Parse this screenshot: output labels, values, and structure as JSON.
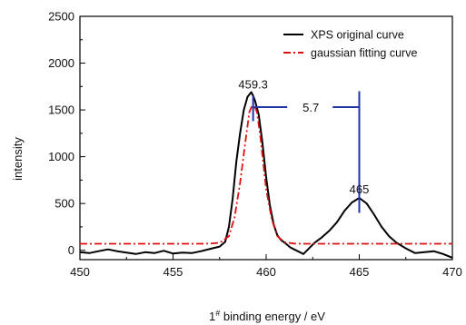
{
  "chart_data": {
    "type": "line",
    "title": "",
    "xlabel_prefix": "1",
    "xlabel_sup": "#",
    "xlabel_rest": " binding energy / eV",
    "ylabel": "intensity",
    "xlim": [
      450,
      470
    ],
    "ylim": [
      -100,
      2500
    ],
    "xticks": [
      450,
      455,
      460,
      465,
      470
    ],
    "yticks": [
      0,
      500,
      1000,
      1500,
      2000,
      2500
    ],
    "grid": false,
    "legend_position": "top-right",
    "series": [
      {
        "name": "XPS original curve",
        "color": "#000000",
        "style": "solid",
        "x": [
          450.0,
          450.5,
          451.0,
          451.5,
          452.0,
          452.5,
          453.0,
          453.5,
          454.0,
          454.5,
          455.0,
          455.5,
          456.0,
          456.5,
          457.0,
          457.5,
          457.8,
          458.0,
          458.2,
          458.4,
          458.6,
          458.8,
          459.0,
          459.2,
          459.3,
          459.4,
          459.6,
          459.8,
          460.0,
          460.2,
          460.4,
          460.6,
          460.8,
          461.0,
          461.3,
          461.6,
          462.0,
          462.3,
          462.6,
          463.0,
          463.4,
          463.8,
          464.2,
          464.6,
          465.0,
          465.4,
          465.8,
          466.2,
          466.6,
          467.0,
          467.5,
          468.0,
          468.5,
          469.0,
          469.5,
          470.0
        ],
        "y": [
          -20,
          -30,
          -10,
          10,
          -10,
          -25,
          -40,
          -20,
          -30,
          -5,
          -35,
          -25,
          -30,
          -10,
          15,
          40,
          90,
          250,
          550,
          950,
          1250,
          1500,
          1640,
          1690,
          1650,
          1600,
          1450,
          1150,
          780,
          480,
          280,
          160,
          110,
          80,
          30,
          0,
          -40,
          20,
          80,
          140,
          210,
          300,
          420,
          510,
          560,
          500,
          380,
          250,
          150,
          80,
          20,
          -30,
          -20,
          -10,
          -40,
          -80
        ]
      },
      {
        "name": "gaussian fitting curve",
        "color": "#dd1111",
        "style": "dashdot",
        "x": [
          450.0,
          456.5,
          457.0,
          457.5,
          458.0,
          458.3,
          458.6,
          458.9,
          459.1,
          459.3,
          459.5,
          459.7,
          460.0,
          460.3,
          460.6,
          461.0,
          461.5,
          462.0,
          470.0
        ],
        "y": [
          70,
          70,
          72,
          80,
          150,
          350,
          720,
          1180,
          1480,
          1570,
          1480,
          1200,
          650,
          330,
          150,
          85,
          72,
          70,
          70
        ]
      }
    ],
    "annotations": {
      "peak1_label": "459.3",
      "peak1_x": 459.3,
      "peak1_y": 1730,
      "peak2_label": "465",
      "peak2_x": 465,
      "peak2_y": 610,
      "separation_label": "5.7",
      "bracket": {
        "x1": 459.3,
        "x2": 465.0,
        "y_bar": 1530,
        "y1_top": 1650,
        "y1_bottom": 1380,
        "y2_top": 1700,
        "y2_bottom": 400,
        "label_x": 462.4,
        "color": "#2233aa"
      }
    }
  }
}
